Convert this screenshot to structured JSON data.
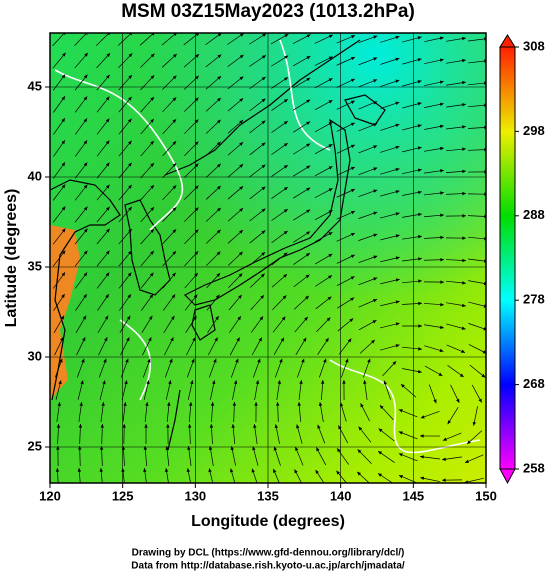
{
  "chart_data": {
    "type": "map",
    "title": "MSM 03Z15May2023 (1013.2hPa)",
    "x_label": "Longitude (degrees)",
    "y_label": "Latitude  (degrees)",
    "xlim": [
      120,
      150
    ],
    "xticks": [
      120,
      125,
      130,
      135,
      140,
      145,
      150
    ],
    "ylim": [
      23,
      48
    ],
    "yticks": [
      25,
      30,
      35,
      40,
      45
    ],
    "grid": true,
    "colorbar": {
      "lim": [
        258,
        308
      ],
      "ticks": [
        258,
        268,
        278,
        288,
        298,
        308
      ],
      "colors": [
        "#ff00ff",
        "#0000ff",
        "#00ffff",
        "#00dd00",
        "#eeee00",
        "#ff2000"
      ]
    },
    "credits": [
      "Drawing by DCL (https://www.gfd-dennou.org/library/dcl/)",
      "Data from http://database.rish.kyoto-u.ac.jp/arch/jmadata/"
    ]
  }
}
